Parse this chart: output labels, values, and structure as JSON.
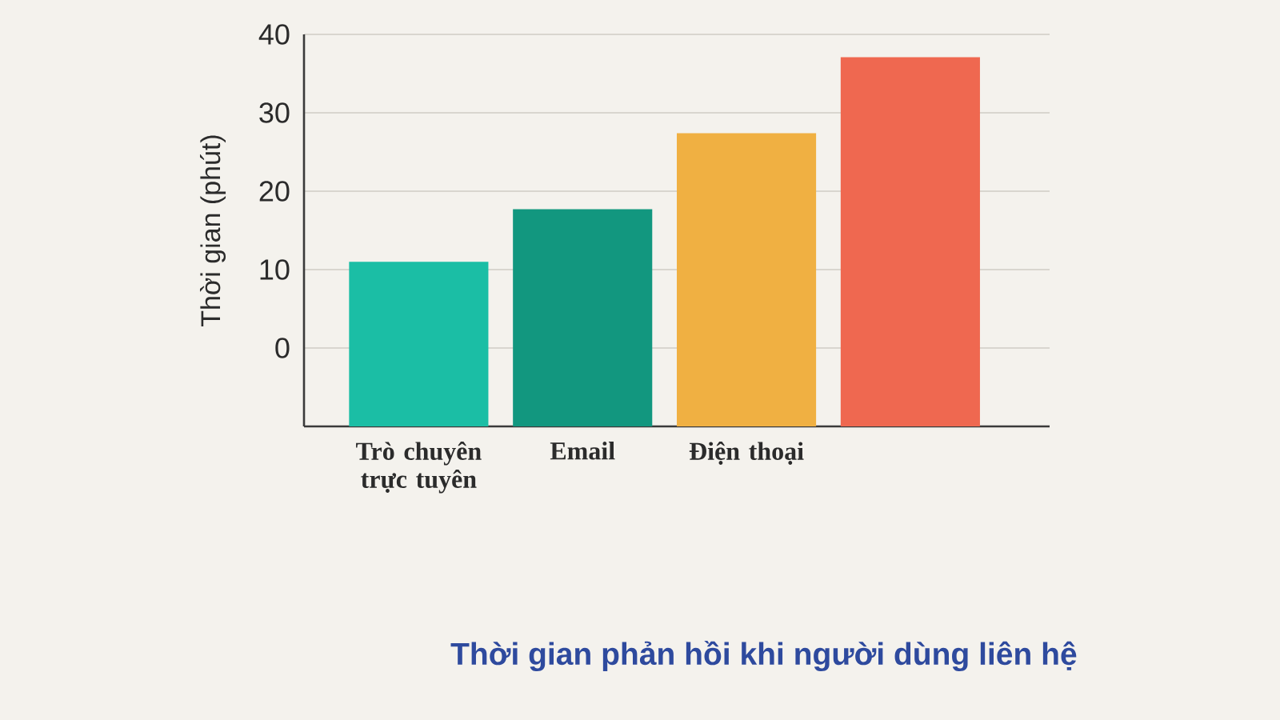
{
  "chart_data": {
    "type": "bar",
    "title": "Thời gian phản hồi khi người dùng liên hệ",
    "ylabel": "Thời gian (phút)",
    "categories": [
      "Trò chuyên trực tuyên",
      "Email",
      "Điện thoại",
      null
    ],
    "values": [
      21,
      27.7,
      37.4,
      47.1
    ],
    "base": [
      -10,
      -10,
      -10,
      -10
    ],
    "colors": [
      "#1bbea5",
      "#12977f",
      "#f0b042",
      "#ef6850"
    ],
    "ylim": [
      -10,
      40
    ],
    "yticks": [
      0,
      10,
      20,
      30,
      40
    ],
    "grid": "y"
  }
}
